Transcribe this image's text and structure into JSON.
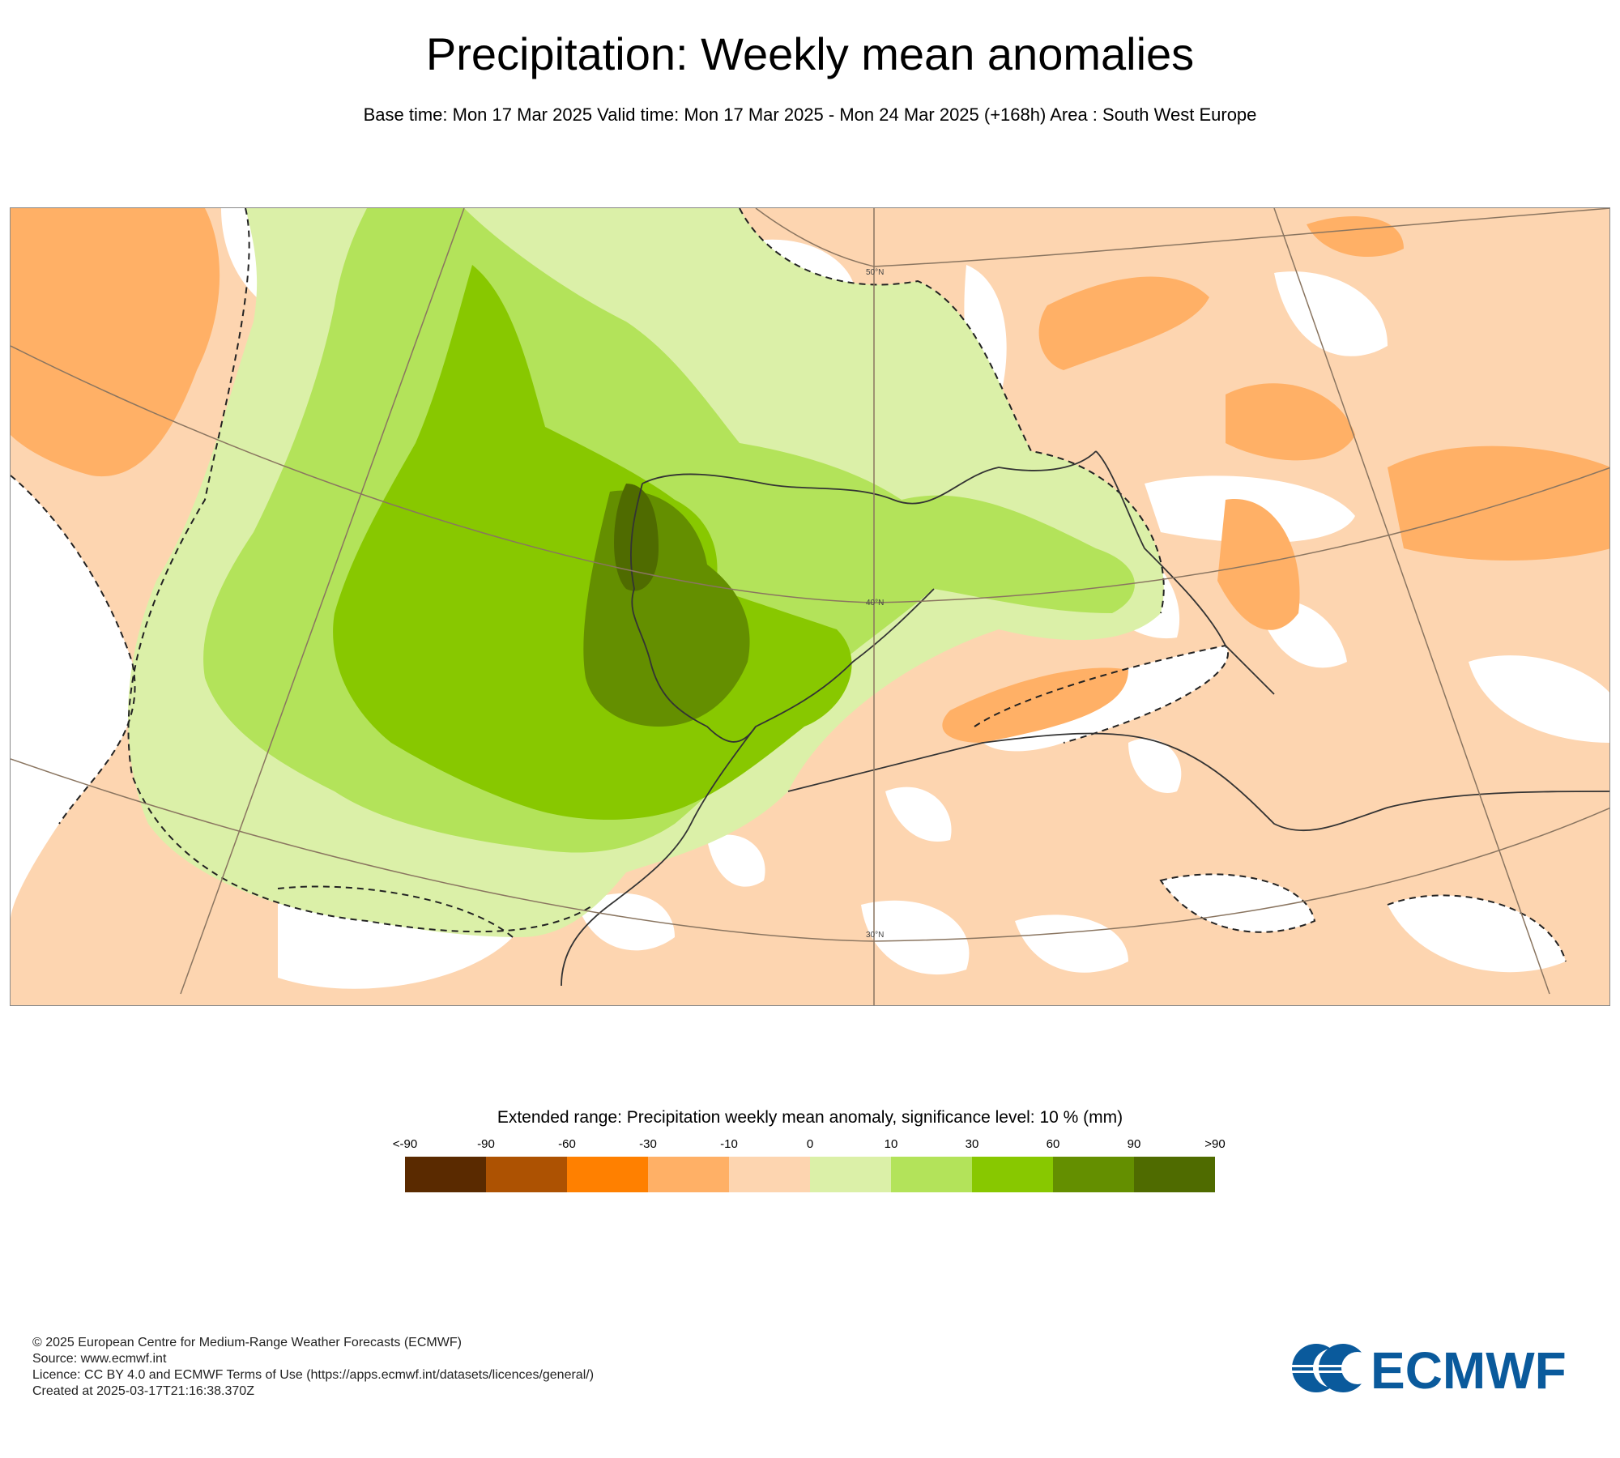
{
  "header": {
    "title": "Precipitation: Weekly mean anomalies",
    "subtitle": "Base time: Mon 17 Mar 2025 Valid time: Mon 17 Mar 2025 - Mon 24 Mar 2025 (+168h) Area : South West Europe"
  },
  "map": {
    "lat_labels": [
      "50°N",
      "40°N",
      "30°N"
    ]
  },
  "legend": {
    "title": "Extended range: Precipitation weekly mean anomaly, significance level: 10 % (mm)",
    "ticks": [
      "<-90",
      "-90",
      "-60",
      "-30",
      "-10",
      "0",
      "10",
      "30",
      "60",
      "90",
      ">90"
    ],
    "colors": [
      "#5a2a00",
      "#ad5202",
      "#ff8000",
      "#ffb066",
      "#fdd5b0",
      "#dbf0a8",
      "#b3e35a",
      "#88c800",
      "#648f00",
      "#4f6b00"
    ]
  },
  "footer": {
    "lines": [
      "© 2025 European Centre for Medium-Range Weather Forecasts (ECMWF)",
      "Source: www.ecmwf.int",
      "Licence: CC BY 4.0 and ECMWF Terms of Use (https://apps.ecmwf.int/datasets/licences/general/)",
      "Created at 2025-03-17T21:16:38.370Z"
    ]
  },
  "logo": {
    "text": "ECMWF",
    "color": "#0a5a9c"
  }
}
